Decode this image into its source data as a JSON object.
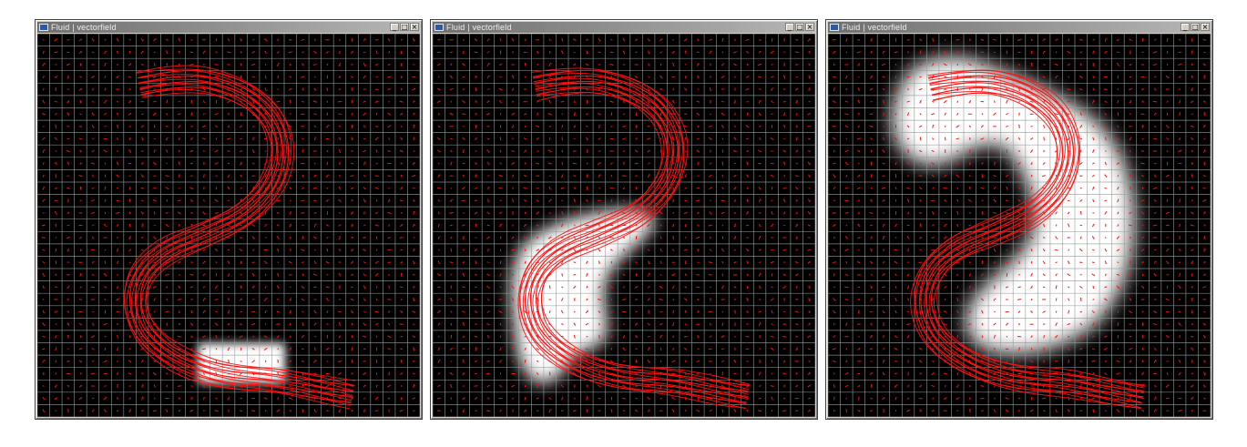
{
  "windows": [
    {
      "title": "Fluid | vectorfield",
      "buttons": {
        "minimize": "_",
        "maximize": "□",
        "close": "×"
      },
      "blob_shape": "rectangle"
    },
    {
      "title": "Fluid | vectorfield",
      "buttons": {
        "minimize": "_",
        "maximize": "□",
        "close": "×"
      },
      "blob_shape": "crescent"
    },
    {
      "title": "Fluid | vectorfield",
      "buttons": {
        "minimize": "_",
        "maximize": "□",
        "close": "×"
      },
      "blob_shape": "s-curve"
    }
  ],
  "colors": {
    "background": "#000000",
    "grid": "#9a9a9a",
    "vectors": "#ff1010",
    "density": "#ffffff"
  },
  "grid": {
    "columns": 31,
    "rows": 31
  }
}
